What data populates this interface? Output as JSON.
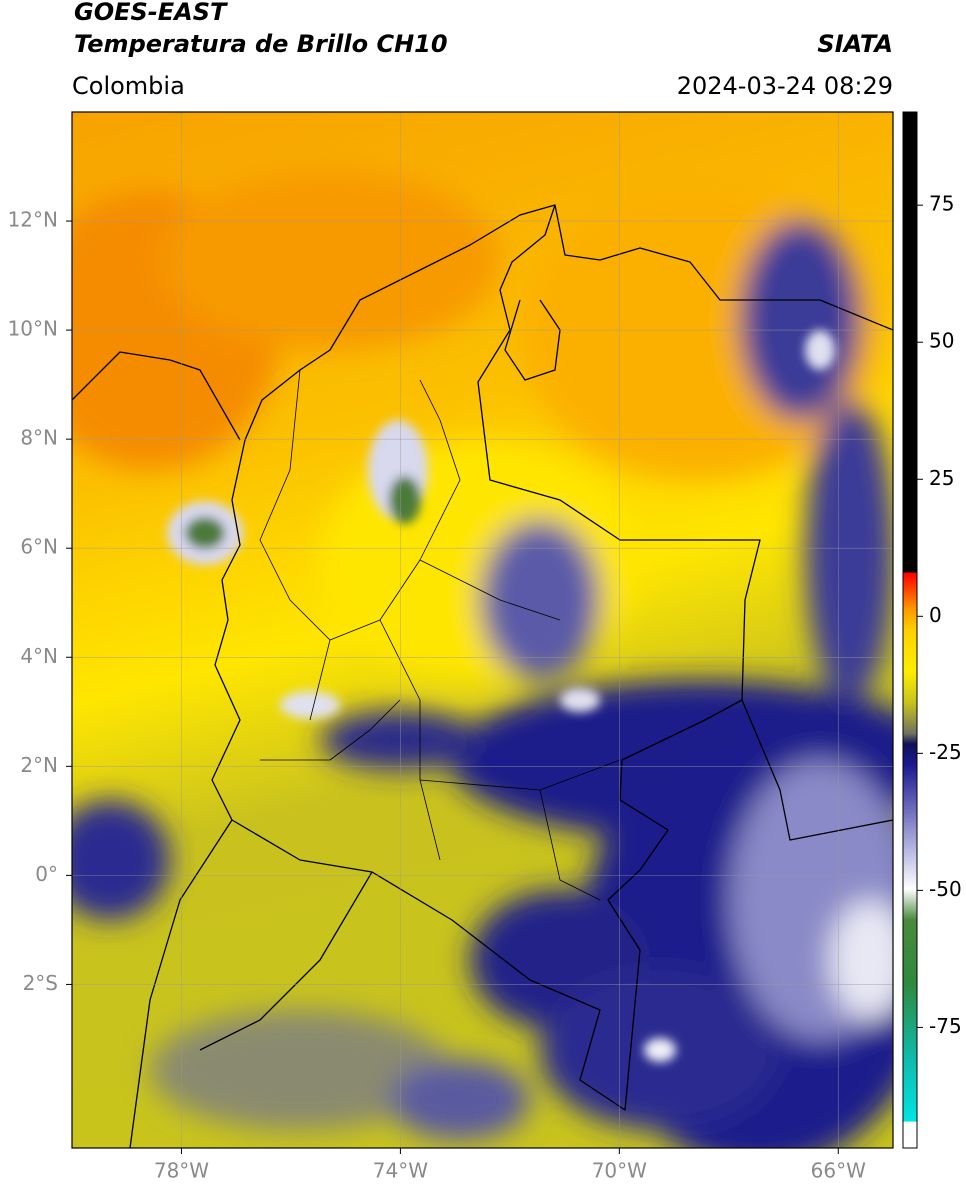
{
  "header": {
    "title": "GOES-EAST",
    "subtitle": "Temperatura de Brillo CH10",
    "source": "SIATA",
    "region": "Colombia",
    "datetime": "2024-03-24 08:29"
  },
  "map": {
    "xlim": [
      -80,
      -65
    ],
    "ylim": [
      -5,
      14
    ],
    "xticks": [
      {
        "value": -78,
        "label": "78°W"
      },
      {
        "value": -74,
        "label": "74°W"
      },
      {
        "value": -70,
        "label": "70°W"
      },
      {
        "value": -66,
        "label": "66°W"
      }
    ],
    "yticks": [
      {
        "value": 12,
        "label": "12°N"
      },
      {
        "value": 10,
        "label": "10°N"
      },
      {
        "value": 8,
        "label": "8°N"
      },
      {
        "value": 6,
        "label": "6°N"
      },
      {
        "value": 4,
        "label": "4°N"
      },
      {
        "value": 2,
        "label": "2°N"
      },
      {
        "value": 0,
        "label": "0°"
      },
      {
        "value": -2,
        "label": "2°S"
      }
    ],
    "grid": true
  },
  "colorbar": {
    "lim": [
      -97,
      92
    ],
    "ticks": [
      75,
      50,
      25,
      0,
      -25,
      -50,
      -75
    ]
  }
}
